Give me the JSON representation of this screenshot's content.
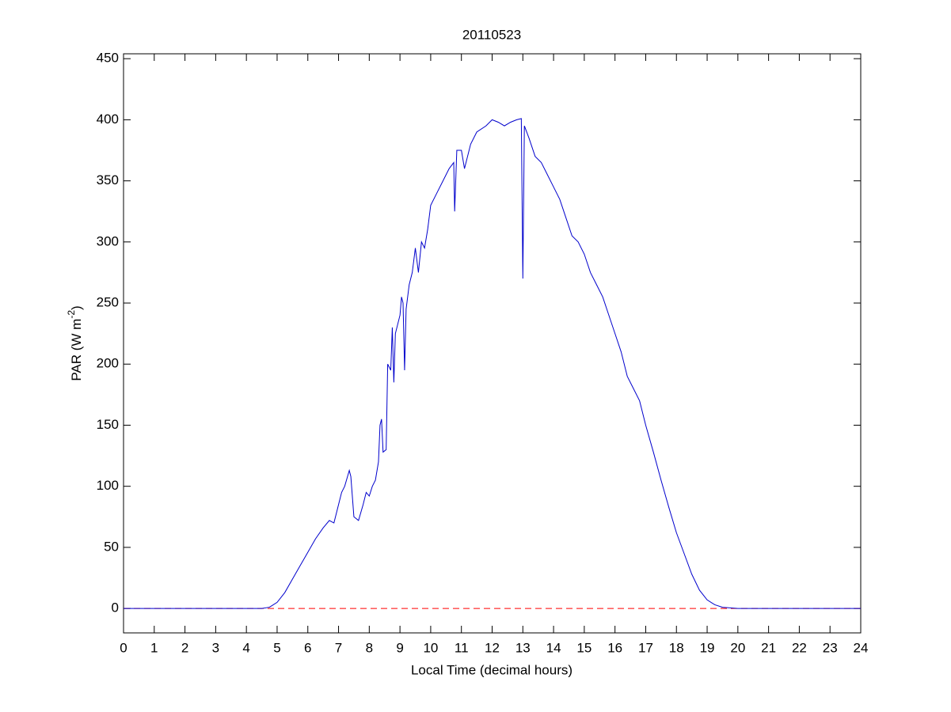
{
  "chart_data": {
    "type": "line",
    "title": "20110523",
    "xlabel": "Local Time (decimal hours)",
    "ylabel": [
      "PAR (W m",
      "-2",
      ")"
    ],
    "xlim": [
      0,
      24
    ],
    "xticks": [
      0,
      1,
      2,
      3,
      4,
      5,
      6,
      7,
      8,
      9,
      10,
      11,
      12,
      13,
      14,
      15,
      16,
      17,
      18,
      19,
      20,
      21,
      22,
      23,
      24
    ],
    "ylim": [
      -20,
      454
    ],
    "yticks": [
      0,
      50,
      100,
      150,
      200,
      250,
      300,
      350,
      400,
      450
    ],
    "hline": {
      "value": 0,
      "color": "#ff0000",
      "style": "dashed"
    },
    "series": [
      {
        "color": "#0000cc",
        "x": [
          0,
          4.5,
          4.75,
          5,
          5.25,
          5.5,
          5.75,
          6,
          6.25,
          6.5,
          6.7,
          6.85,
          7,
          7.1,
          7.2,
          7.35,
          7.4,
          7.5,
          7.65,
          7.8,
          7.9,
          8,
          8.1,
          8.2,
          8.3,
          8.35,
          8.4,
          8.45,
          8.55,
          8.6,
          8.7,
          8.75,
          8.8,
          8.85,
          9,
          9.05,
          9.1,
          9.15,
          9.2,
          9.3,
          9.4,
          9.5,
          9.6,
          9.7,
          9.8,
          9.9,
          10,
          10.2,
          10.4,
          10.6,
          10.75,
          10.78,
          10.85,
          11,
          11.1,
          11.3,
          11.5,
          11.8,
          12,
          12.2,
          12.4,
          12.6,
          12.8,
          12.95,
          13,
          13.05,
          13.2,
          13.4,
          13.6,
          13.8,
          14,
          14.2,
          14.4,
          14.6,
          14.8,
          15,
          15.2,
          15.4,
          15.6,
          15.8,
          16,
          16.2,
          16.4,
          16.6,
          16.8,
          17,
          17.25,
          17.5,
          17.75,
          18,
          18.25,
          18.5,
          18.75,
          19,
          19.25,
          19.5,
          19.75,
          20,
          24
        ],
        "values": [
          0,
          0,
          1,
          5,
          13,
          24,
          35,
          46,
          57,
          66,
          72,
          70,
          85,
          95,
          100,
          113,
          108,
          75,
          72,
          85,
          95,
          92,
          100,
          105,
          120,
          150,
          155,
          128,
          130,
          200,
          195,
          230,
          185,
          225,
          240,
          255,
          250,
          195,
          245,
          265,
          275,
          295,
          275,
          300,
          295,
          310,
          330,
          340,
          350,
          360,
          365,
          325,
          375,
          375,
          360,
          380,
          390,
          395,
          400,
          398,
          395,
          398,
          400,
          401,
          270,
          395,
          385,
          370,
          365,
          355,
          345,
          335,
          320,
          305,
          300,
          290,
          275,
          265,
          255,
          240,
          225,
          210,
          190,
          180,
          170,
          150,
          128,
          105,
          83,
          62,
          45,
          28,
          15,
          7,
          3,
          1,
          0.5,
          0,
          0
        ]
      }
    ]
  }
}
